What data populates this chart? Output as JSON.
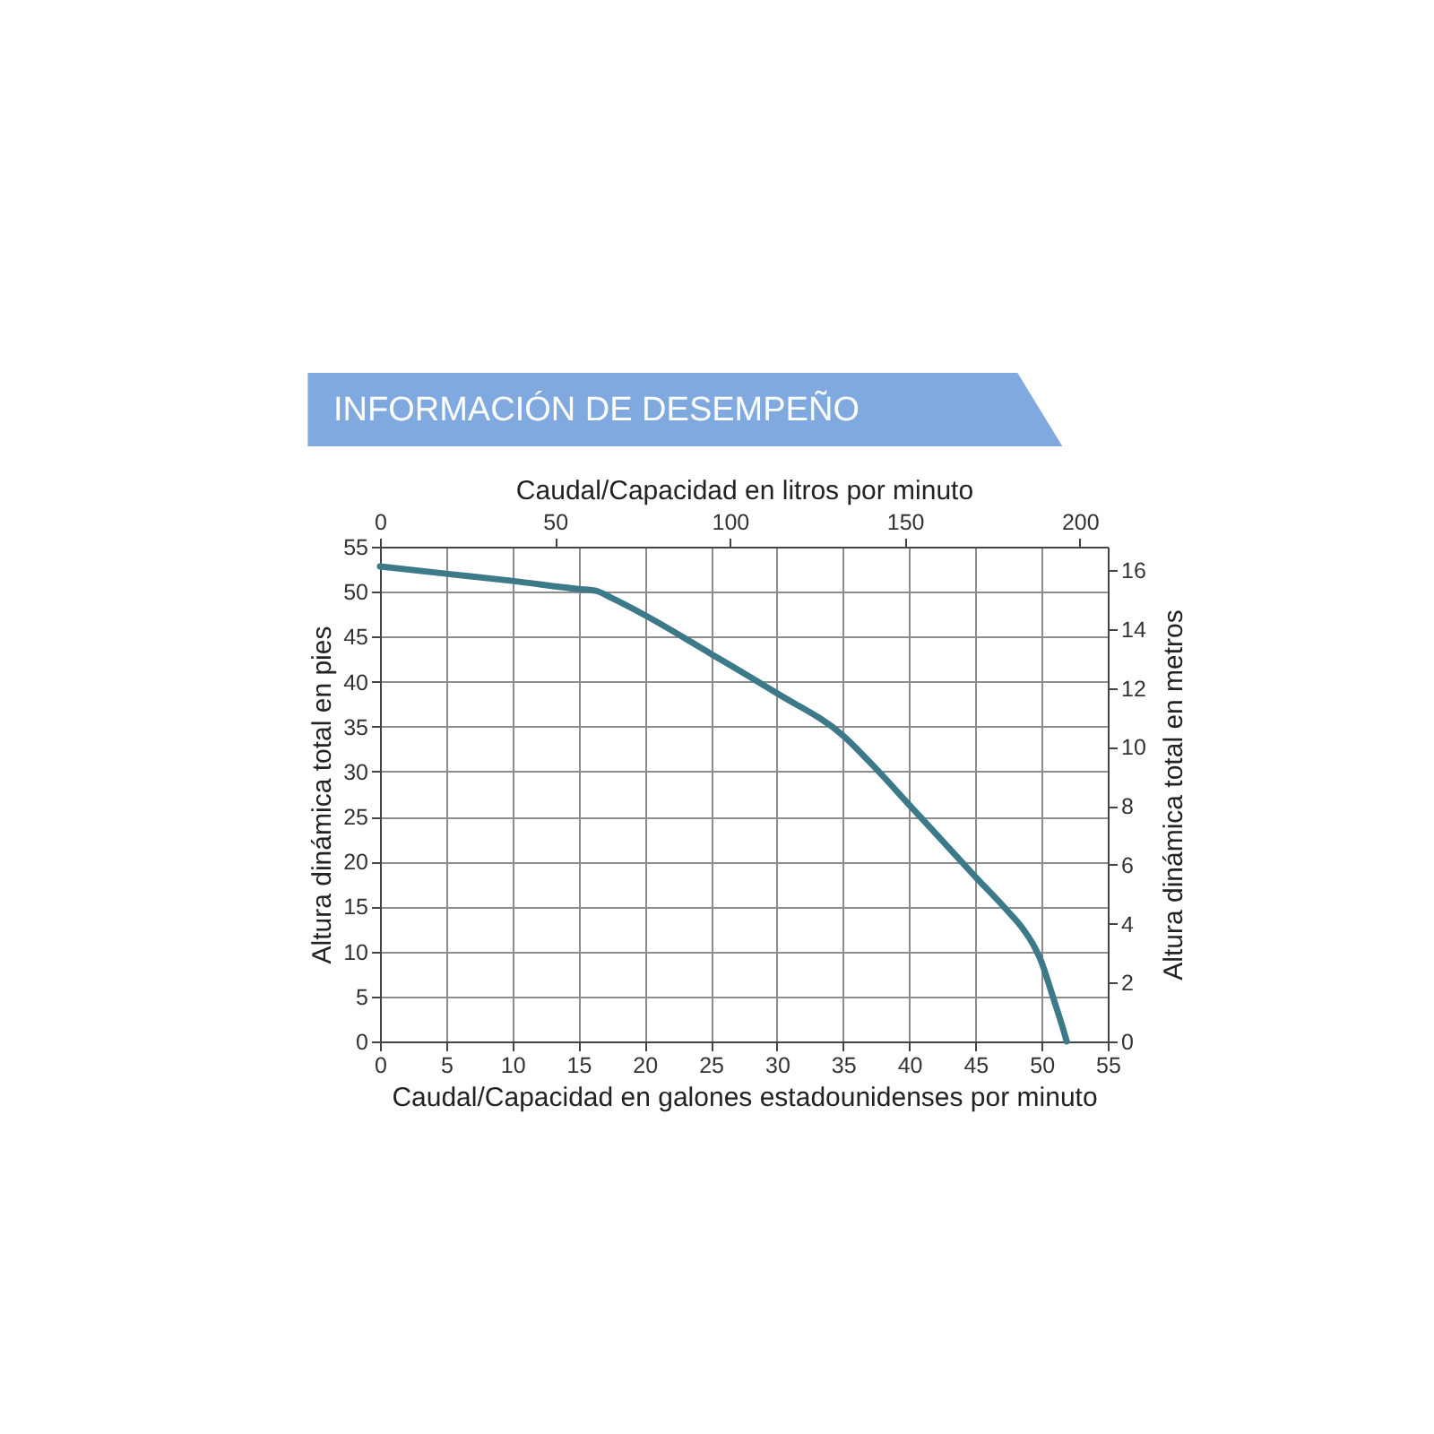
{
  "chart_data": {
    "type": "line",
    "title": "INFORMACIÓN DE DESEMPEÑO",
    "xlabel": "Caudal/Capacidad en galones estadounidenses por minuto",
    "ylabel": "Altura dinámica total en pies",
    "x2label": "Caudal/Capacidad en litros por minuto",
    "y2label": "Altura dinámica total en metros",
    "x": [
      0,
      5,
      10,
      15,
      16.3,
      17.5,
      20,
      25,
      30,
      35,
      37.5,
      40,
      42.5,
      45,
      47.5,
      48.5,
      49.5,
      50,
      50.5,
      51,
      51.5,
      51.9
    ],
    "series": [
      {
        "color": "#3d7a89",
        "values": [
          52.8,
          52.0,
          51.2,
          50.3,
          50.1,
          49.3,
          47.4,
          43.1,
          38.7,
          34.0,
          30.3,
          26.3,
          22.3,
          18.3,
          14.4,
          12.7,
          10.4,
          8.8,
          6.6,
          4.3,
          2.0,
          0
        ]
      }
    ],
    "xlim": [
      0,
      55
    ],
    "xticks": [
      0,
      5,
      10,
      15,
      20,
      25,
      30,
      35,
      40,
      45,
      50,
      55
    ],
    "ylim": [
      0,
      55
    ],
    "yticks": [
      0,
      5,
      10,
      15,
      20,
      25,
      30,
      35,
      40,
      45,
      50,
      55
    ],
    "x2lim": [
      0,
      208
    ],
    "x2ticks": [
      0,
      50,
      100,
      150,
      200
    ],
    "y2lim": [
      0,
      16.8
    ],
    "y2ticks": [
      0,
      2,
      4,
      6,
      8,
      10,
      12,
      14,
      16
    ],
    "grid": true,
    "line_style": "solid"
  }
}
